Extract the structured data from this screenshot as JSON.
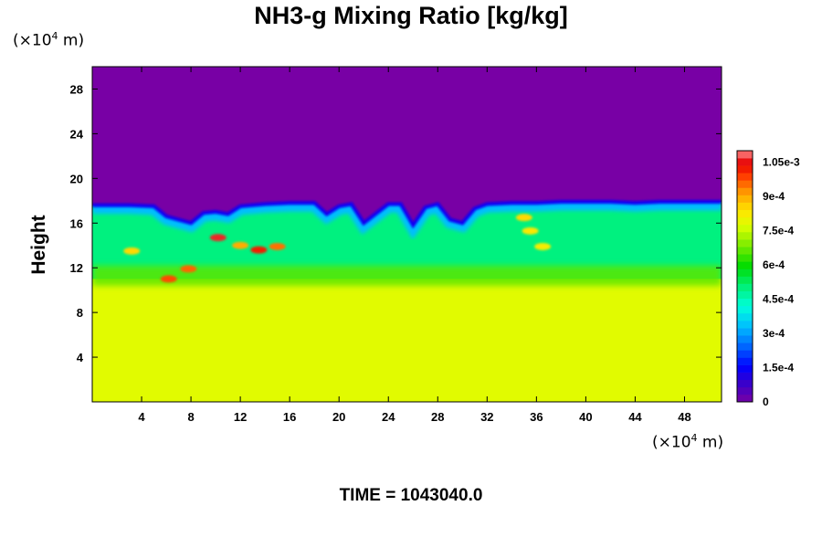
{
  "chart_data": {
    "type": "heatmap",
    "title": "NH3-g Mixing Ratio [kg/kg]",
    "ylabel": "Height",
    "x_unit": {
      "prefix": "(×10",
      "exp": "4",
      "suffix": " m)"
    },
    "y_unit": {
      "prefix": "(×10",
      "exp": "4",
      "suffix": " m)"
    },
    "xlim": [
      0,
      51
    ],
    "ylim": [
      0,
      30
    ],
    "x_ticks": [
      4,
      8,
      12,
      16,
      20,
      24,
      28,
      32,
      36,
      40,
      44,
      48
    ],
    "y_ticks": [
      4,
      8,
      12,
      16,
      20,
      24,
      28
    ],
    "colorbar": {
      "min": 0,
      "max": 0.0011,
      "labels": [
        "0",
        "1.5e-4",
        "3e-4",
        "4.5e-4",
        "6e-4",
        "7.5e-4",
        "9e-4",
        "1.05e-3"
      ],
      "label_values": [
        0,
        0.00015,
        0.0003,
        0.00045,
        0.0006,
        0.00075,
        0.0009,
        0.00105
      ]
    },
    "regions": {
      "upper_layer": {
        "y_min": 17.5,
        "y_max": 30,
        "value": 0
      },
      "lower_layer": {
        "y_min": 0,
        "y_max": 11,
        "value": 0.00078
      },
      "mixing_layer": {
        "y_min": 11,
        "y_max": 17.5,
        "typical_value": 0.0005
      }
    },
    "interface_profile": {
      "x": [
        0,
        3,
        5,
        6,
        8,
        9,
        10,
        11,
        12,
        14,
        16,
        18,
        19,
        20,
        21,
        22,
        24,
        25,
        26,
        27,
        28,
        29,
        30,
        31,
        32,
        34,
        36,
        38,
        40,
        42,
        44,
        46,
        48,
        51
      ],
      "y": [
        17.6,
        17.6,
        17.5,
        16.6,
        16.0,
        16.9,
        17.0,
        16.8,
        17.5,
        17.7,
        17.8,
        17.8,
        16.8,
        17.5,
        17.7,
        16.0,
        17.7,
        17.7,
        15.8,
        17.4,
        17.7,
        16.3,
        16.0,
        17.3,
        17.7,
        17.8,
        17.8,
        17.9,
        17.9,
        17.9,
        17.8,
        17.9,
        17.9,
        17.9
      ]
    },
    "hotspots": [
      {
        "x": 10.2,
        "y": 14.7,
        "value": 0.00106
      },
      {
        "x": 13.5,
        "y": 13.6,
        "value": 0.00102
      },
      {
        "x": 15.0,
        "y": 13.9,
        "value": 0.00095
      },
      {
        "x": 7.8,
        "y": 11.9,
        "value": 0.00096
      },
      {
        "x": 6.2,
        "y": 11.0,
        "value": 0.00098
      },
      {
        "x": 3.2,
        "y": 13.5,
        "value": 0.00085
      },
      {
        "x": 35.0,
        "y": 16.5,
        "value": 0.00085
      },
      {
        "x": 35.5,
        "y": 15.3,
        "value": 0.00083
      },
      {
        "x": 36.5,
        "y": 13.9,
        "value": 0.00082
      },
      {
        "x": 12.0,
        "y": 14.0,
        "value": 0.0009
      }
    ],
    "grid": false,
    "legend": "right colorbar"
  },
  "footer": {
    "time_label": "TIME = 1043040.0"
  }
}
